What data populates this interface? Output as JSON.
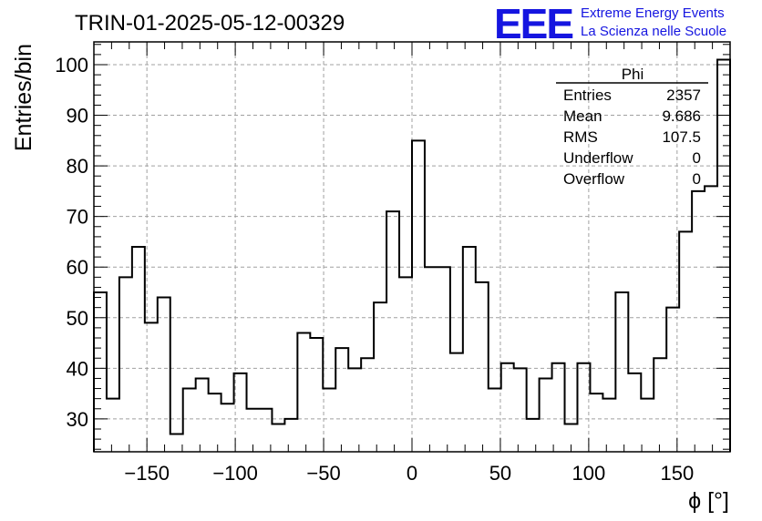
{
  "run_title": "TRIN-01-2025-05-12-00329",
  "logo": {
    "mark": "EEE",
    "line1": "Extreme Energy Events",
    "line2": "La Scienza nelle Scuole"
  },
  "stats_box": {
    "name": "Phi",
    "rows": [
      {
        "label": "Entries",
        "value": "2357"
      },
      {
        "label": "Mean",
        "value": "9.686"
      },
      {
        "label": "RMS",
        "value": "107.5"
      },
      {
        "label": "Underflow",
        "value": "0"
      },
      {
        "label": "Overflow",
        "value": "0"
      }
    ]
  },
  "chart_data": {
    "type": "bar",
    "style": "step-histogram",
    "xlabel": "ϕ [°]",
    "ylabel": "Entries/bin",
    "xlim": [
      -180,
      180
    ],
    "ylim": [
      23.5,
      104.5
    ],
    "bin_width": 7.2,
    "x_ticks": [
      -150,
      -100,
      -50,
      0,
      50,
      100,
      150
    ],
    "y_ticks": [
      30,
      40,
      50,
      60,
      70,
      80,
      90,
      100
    ],
    "grid": true,
    "values": [
      55,
      34,
      58,
      64,
      49,
      54,
      27,
      36,
      38,
      35,
      33,
      39,
      32,
      32,
      29,
      30,
      47,
      46,
      36,
      44,
      40,
      42,
      53,
      71,
      58,
      85,
      60,
      60,
      43,
      64,
      57,
      36,
      41,
      40,
      30,
      38,
      41,
      29,
      41,
      35,
      34,
      55,
      39,
      34,
      42,
      52,
      67,
      75,
      76,
      101
    ]
  }
}
